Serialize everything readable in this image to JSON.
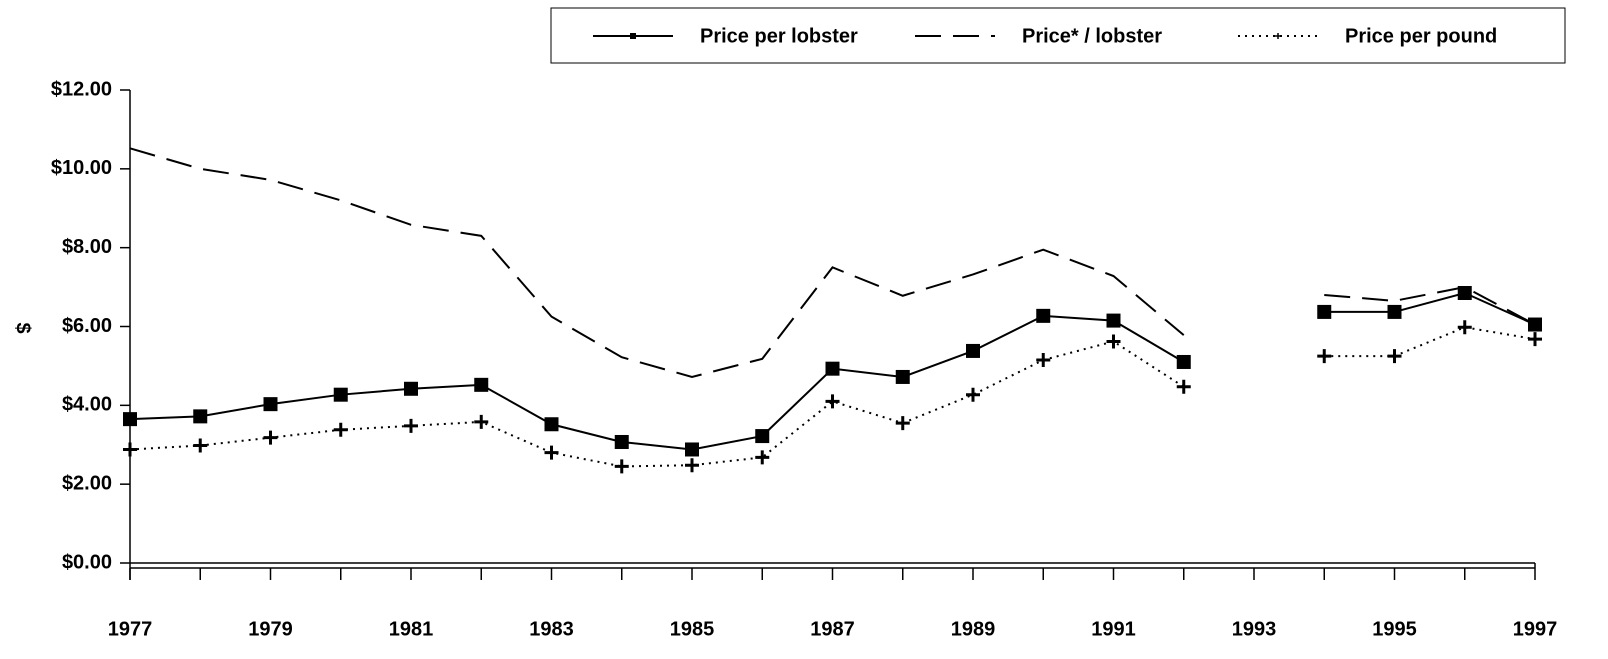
{
  "chart_data": {
    "type": "line",
    "y_label": "$",
    "x": [
      1977,
      1978,
      1979,
      1980,
      1981,
      1982,
      1983,
      1984,
      1985,
      1986,
      1987,
      1988,
      1989,
      1990,
      1991,
      1992,
      1993,
      1994,
      1995,
      1996,
      1997
    ],
    "series": [
      {
        "name": "Price per lobster",
        "color": "#000000",
        "dash": "solid",
        "marker": "square",
        "values": [
          3.65,
          3.72,
          4.03,
          4.27,
          4.42,
          4.52,
          3.52,
          3.07,
          2.88,
          3.22,
          4.93,
          4.72,
          5.38,
          6.27,
          6.15,
          5.1,
          null,
          6.37,
          6.37,
          6.85,
          6.05
        ]
      },
      {
        "name": "Price* / lobster",
        "color": "#000000",
        "dash": "dashed",
        "marker": "none",
        "values": [
          10.52,
          10.0,
          9.72,
          9.2,
          8.58,
          8.3,
          6.25,
          5.22,
          4.72,
          5.18,
          7.5,
          6.78,
          7.32,
          7.95,
          7.28,
          5.78,
          null,
          6.8,
          6.65,
          7.0,
          6.05
        ]
      },
      {
        "name": "Price per pound",
        "color": "#000000",
        "dash": "dotted",
        "marker": "plus",
        "values": [
          2.88,
          2.98,
          3.18,
          3.38,
          3.48,
          3.58,
          2.8,
          2.45,
          2.48,
          2.68,
          4.1,
          3.55,
          4.27,
          5.15,
          5.62,
          4.47,
          null,
          5.25,
          5.25,
          5.98,
          5.68
        ]
      }
    ],
    "xlim": [
      1977,
      1997
    ],
    "xticks": [
      1977,
      1979,
      1981,
      1983,
      1985,
      1987,
      1989,
      1991,
      1993,
      1995,
      1997
    ],
    "xminorticks": [
      1978,
      1980,
      1982,
      1984,
      1986,
      1988,
      1990,
      1992,
      1994,
      1996
    ],
    "ylim": [
      0,
      12
    ],
    "yticks": [
      {
        "value": 0,
        "label": "$0.00"
      },
      {
        "value": 2,
        "label": "$2.00"
      },
      {
        "value": 4,
        "label": "$4.00"
      },
      {
        "value": 6,
        "label": "$6.00"
      },
      {
        "value": 8,
        "label": "$8.00"
      },
      {
        "value": 10,
        "label": "$10.00"
      },
      {
        "value": 12,
        "label": "$12.00"
      }
    ],
    "legend": "top-right"
  }
}
